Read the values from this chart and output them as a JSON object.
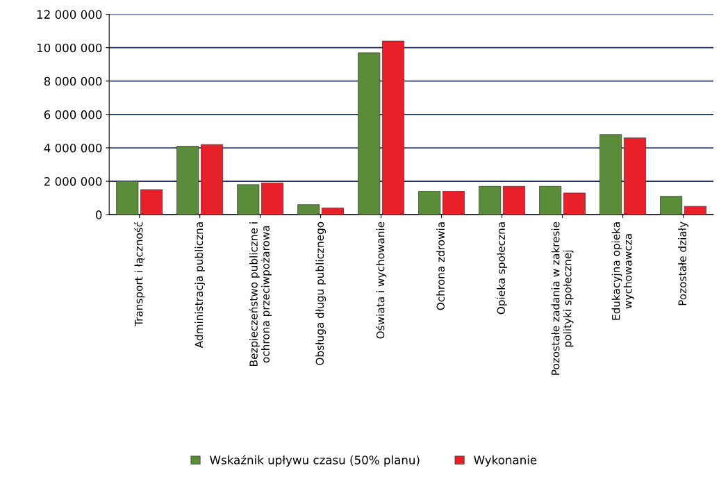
{
  "chart_data": {
    "type": "bar",
    "categories": [
      "Transport i łączność",
      "Administracja publiczna",
      "Bezpieczeństwo publiczne i\nochrona przeciwpożarowa",
      "Obsługa długu publicznego",
      "Oświata i wychowanie",
      "Ochrona zdrowia",
      "Opieka społeczna",
      "Pozostałe zadania w zakresie\npolityki społecznej",
      "Edukacyjna opieka\nwychowawcza",
      "Pozostałe działy"
    ],
    "series": [
      {
        "name": "Wskaźnik upływu czasu (50% planu)",
        "color": "#5b8c3a",
        "values": [
          2000000,
          4100000,
          1800000,
          600000,
          9700000,
          1400000,
          1700000,
          1700000,
          4800000,
          1100000
        ]
      },
      {
        "name": "Wykonanie",
        "color": "#e8202a",
        "values": [
          1500000,
          4200000,
          1900000,
          400000,
          10400000,
          1400000,
          1700000,
          1300000,
          4600000,
          500000
        ]
      }
    ],
    "ylim": [
      0,
      12000000
    ],
    "yticks": [
      0,
      {
        "value": 2000000,
        "label": "2 000 000"
      },
      {
        "value": 4000000,
        "label": "4 000 000"
      },
      {
        "value": 6000000,
        "label": "6 000 000"
      },
      {
        "value": 8000000,
        "label": "8 000 000"
      },
      {
        "value": 10000000,
        "label": "10 000 000"
      },
      {
        "value": 12000000,
        "label": "12 000 000"
      }
    ],
    "grid": "y",
    "legend": "bottom"
  }
}
